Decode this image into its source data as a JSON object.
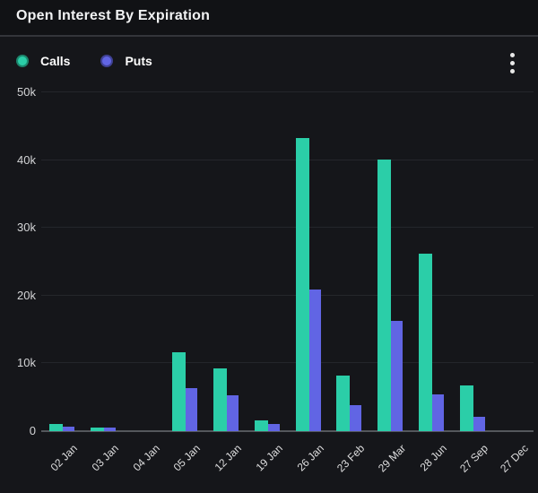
{
  "header": {
    "title": "Open Interest By Expiration"
  },
  "legend": {
    "items": [
      {
        "label": "Calls",
        "color": "#2bcea8"
      },
      {
        "label": "Puts",
        "color": "#6165e4"
      }
    ]
  },
  "icons": {
    "more_options": "kebab-vertical-three-dots"
  },
  "chart_data": {
    "type": "bar",
    "title": "Open Interest By Expiration",
    "categories": [
      "02 Jan",
      "03 Jan",
      "04 Jan",
      "05 Jan",
      "12 Jan",
      "19 Jan",
      "26 Jan",
      "23 Feb",
      "29 Mar",
      "28 Jun",
      "27 Sep",
      "27 Dec"
    ],
    "series": [
      {
        "name": "Calls",
        "color": "#2bcea8",
        "values": [
          1000,
          500,
          0,
          11600,
          9300,
          1600,
          43300,
          8200,
          40100,
          26200,
          6800,
          0
        ]
      },
      {
        "name": "Puts",
        "color": "#6165e4",
        "values": [
          700,
          500,
          0,
          6400,
          5300,
          1100,
          20900,
          3800,
          16300,
          5400,
          2100,
          0
        ]
      }
    ],
    "xlabel": "",
    "ylabel": "",
    "ylim": [
      0,
      50000
    ],
    "yticks": [
      {
        "label": "0",
        "value": 0
      },
      {
        "label": "10k",
        "value": 10000
      },
      {
        "label": "20k",
        "value": 20000
      },
      {
        "label": "30k",
        "value": 30000
      },
      {
        "label": "40k",
        "value": 40000
      },
      {
        "label": "50k",
        "value": 50000
      }
    ],
    "grid": "horizontal",
    "legend_position": "top-left",
    "x_label_rotation": -45
  }
}
